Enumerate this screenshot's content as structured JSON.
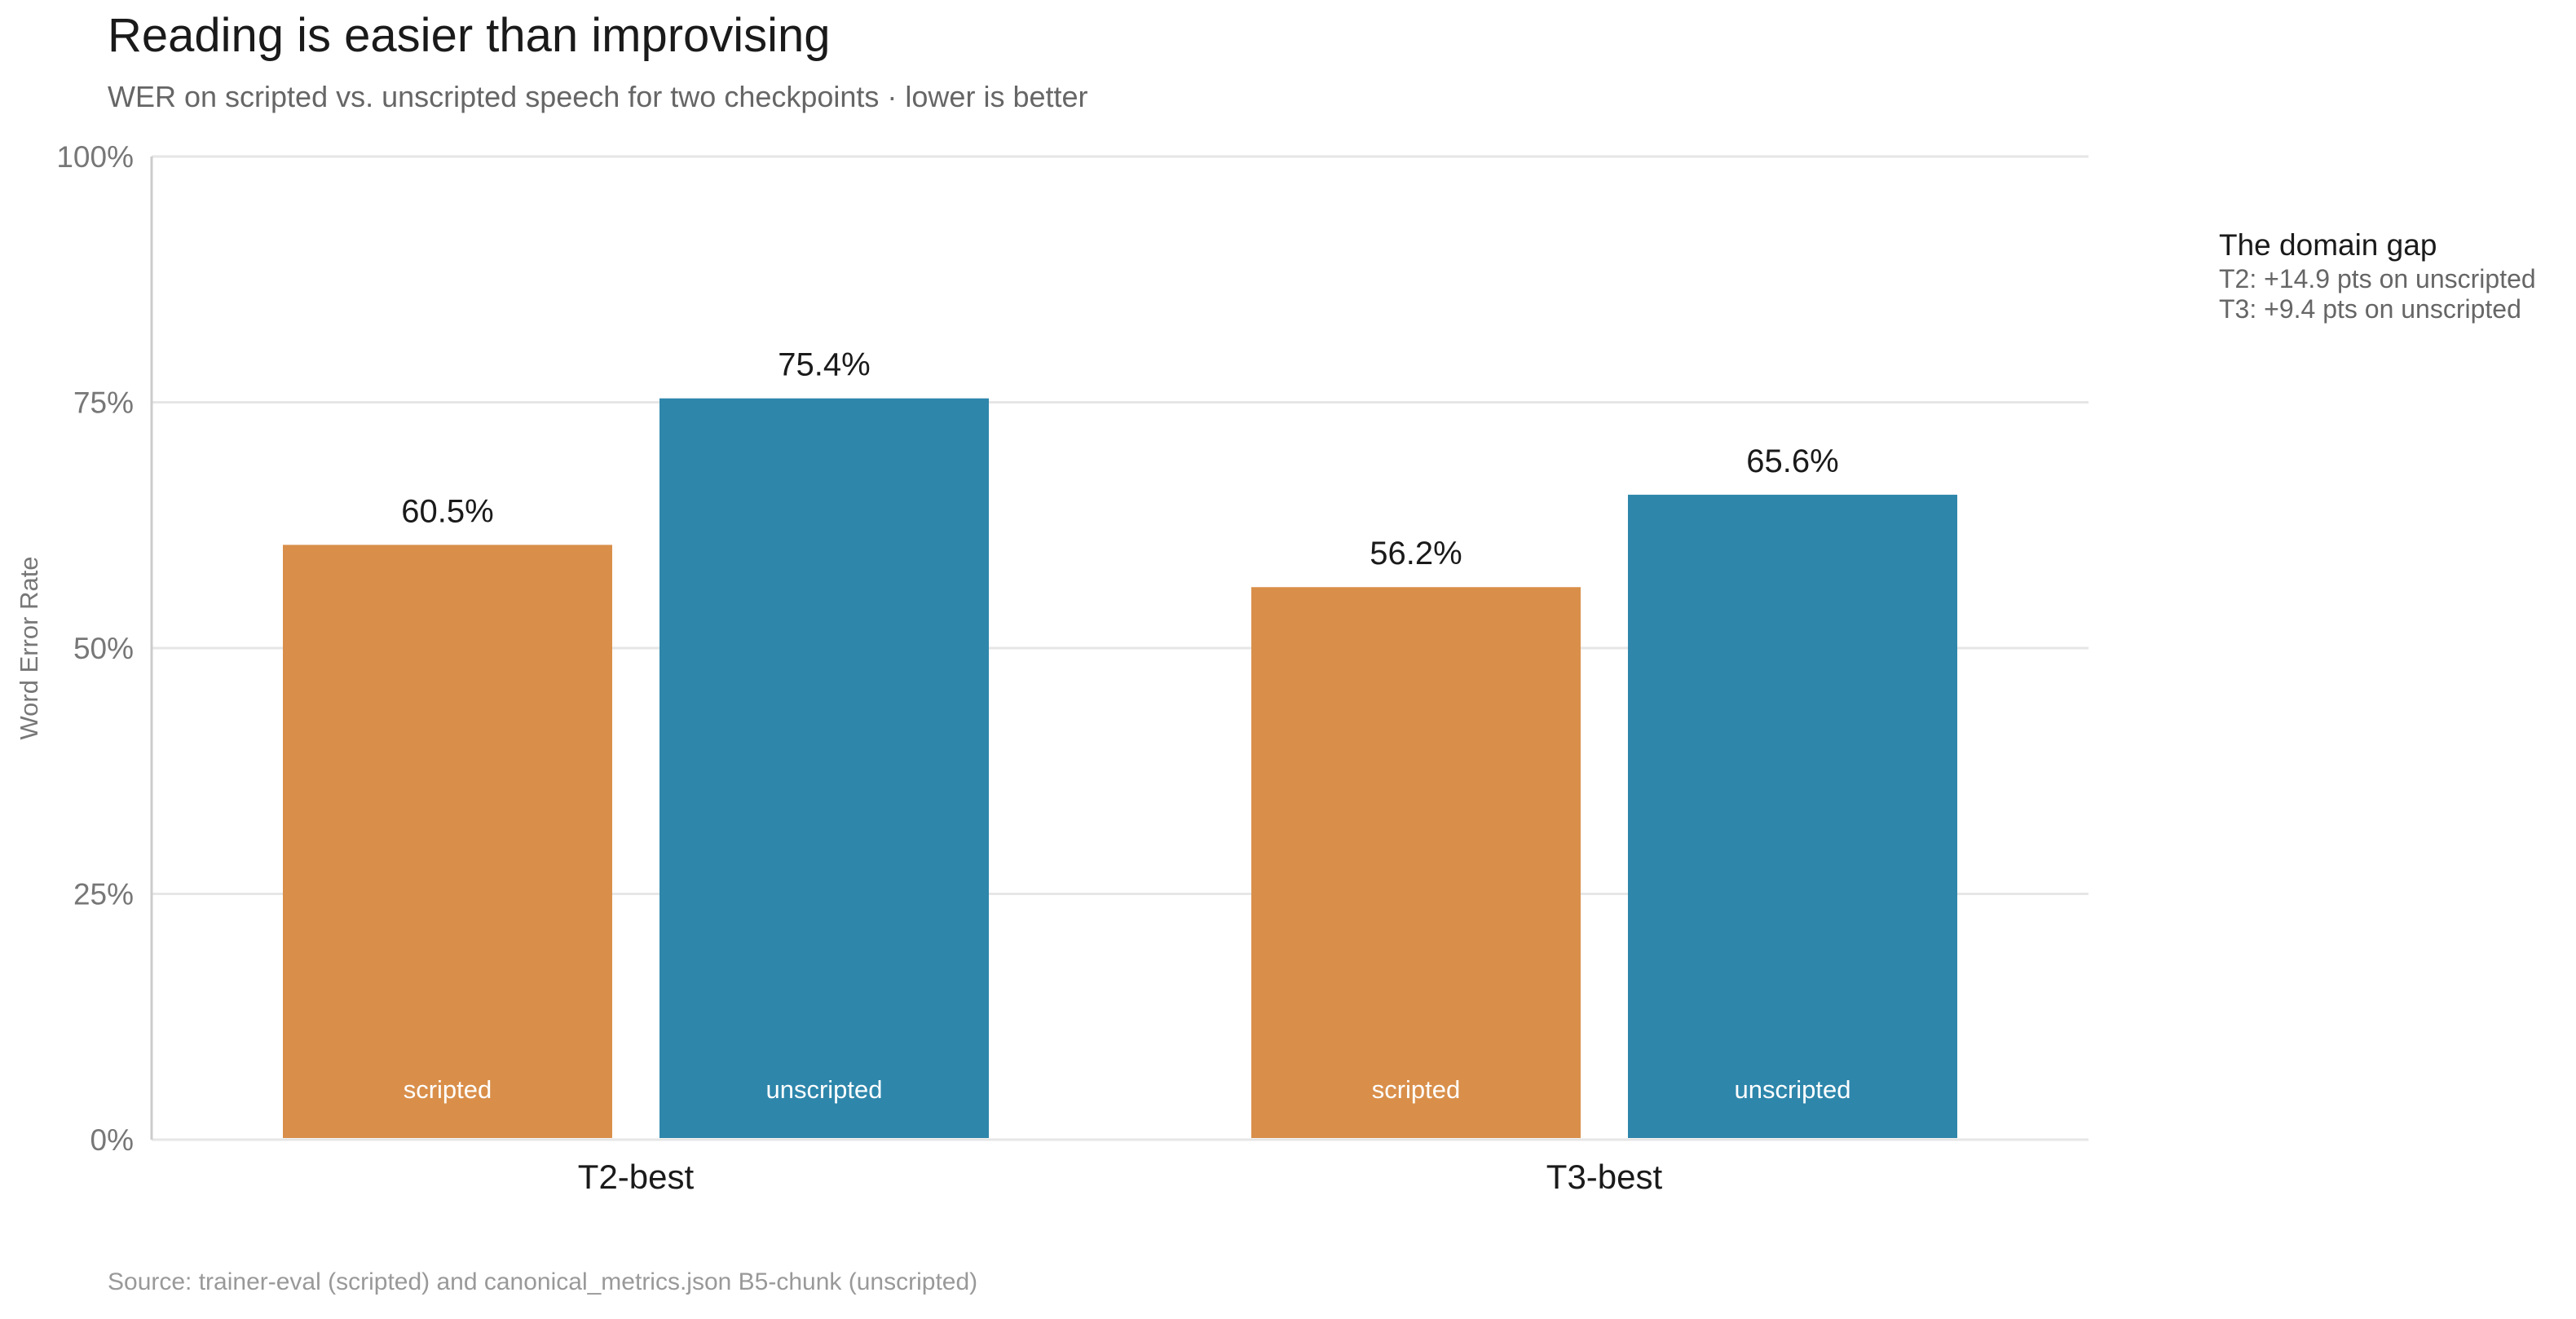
{
  "title": "Reading is easier than improvising",
  "subtitle": "WER on scripted vs. unscripted speech for two checkpoints · lower is better",
  "source": "Source: trainer-eval (scripted) and canonical_metrics.json B5-chunk (unscripted)",
  "annotation": {
    "title": "The domain gap",
    "lines": [
      "T2: +14.9 pts on unscripted",
      "T3: +9.4 pts on unscripted"
    ]
  },
  "colors": {
    "scripted": "#D98F4A",
    "unscripted": "#2E86AB",
    "grid": "#E6E6E6",
    "axis": "#CCCCCC"
  },
  "chart_data": {
    "type": "bar",
    "title": "Reading is easier than improvising",
    "subtitle": "WER on scripted vs. unscripted speech for two checkpoints · lower is better",
    "xlabel": "",
    "ylabel": "Word Error Rate",
    "categories": [
      "T2-best",
      "T3-best"
    ],
    "series": [
      {
        "name": "scripted",
        "values": [
          60.5,
          56.2
        ],
        "labels": [
          "60.5%",
          "56.2%"
        ]
      },
      {
        "name": "unscripted",
        "values": [
          75.4,
          65.6
        ],
        "labels": [
          "75.4%",
          "65.6%"
        ]
      }
    ],
    "ylim": [
      0,
      100
    ],
    "yticks": [
      0,
      25,
      50,
      75,
      100
    ],
    "ytick_labels": [
      "0%",
      "25%",
      "50%",
      "75%",
      "100%"
    ],
    "grid": true,
    "legend": "none (series names shown inside bars)"
  }
}
